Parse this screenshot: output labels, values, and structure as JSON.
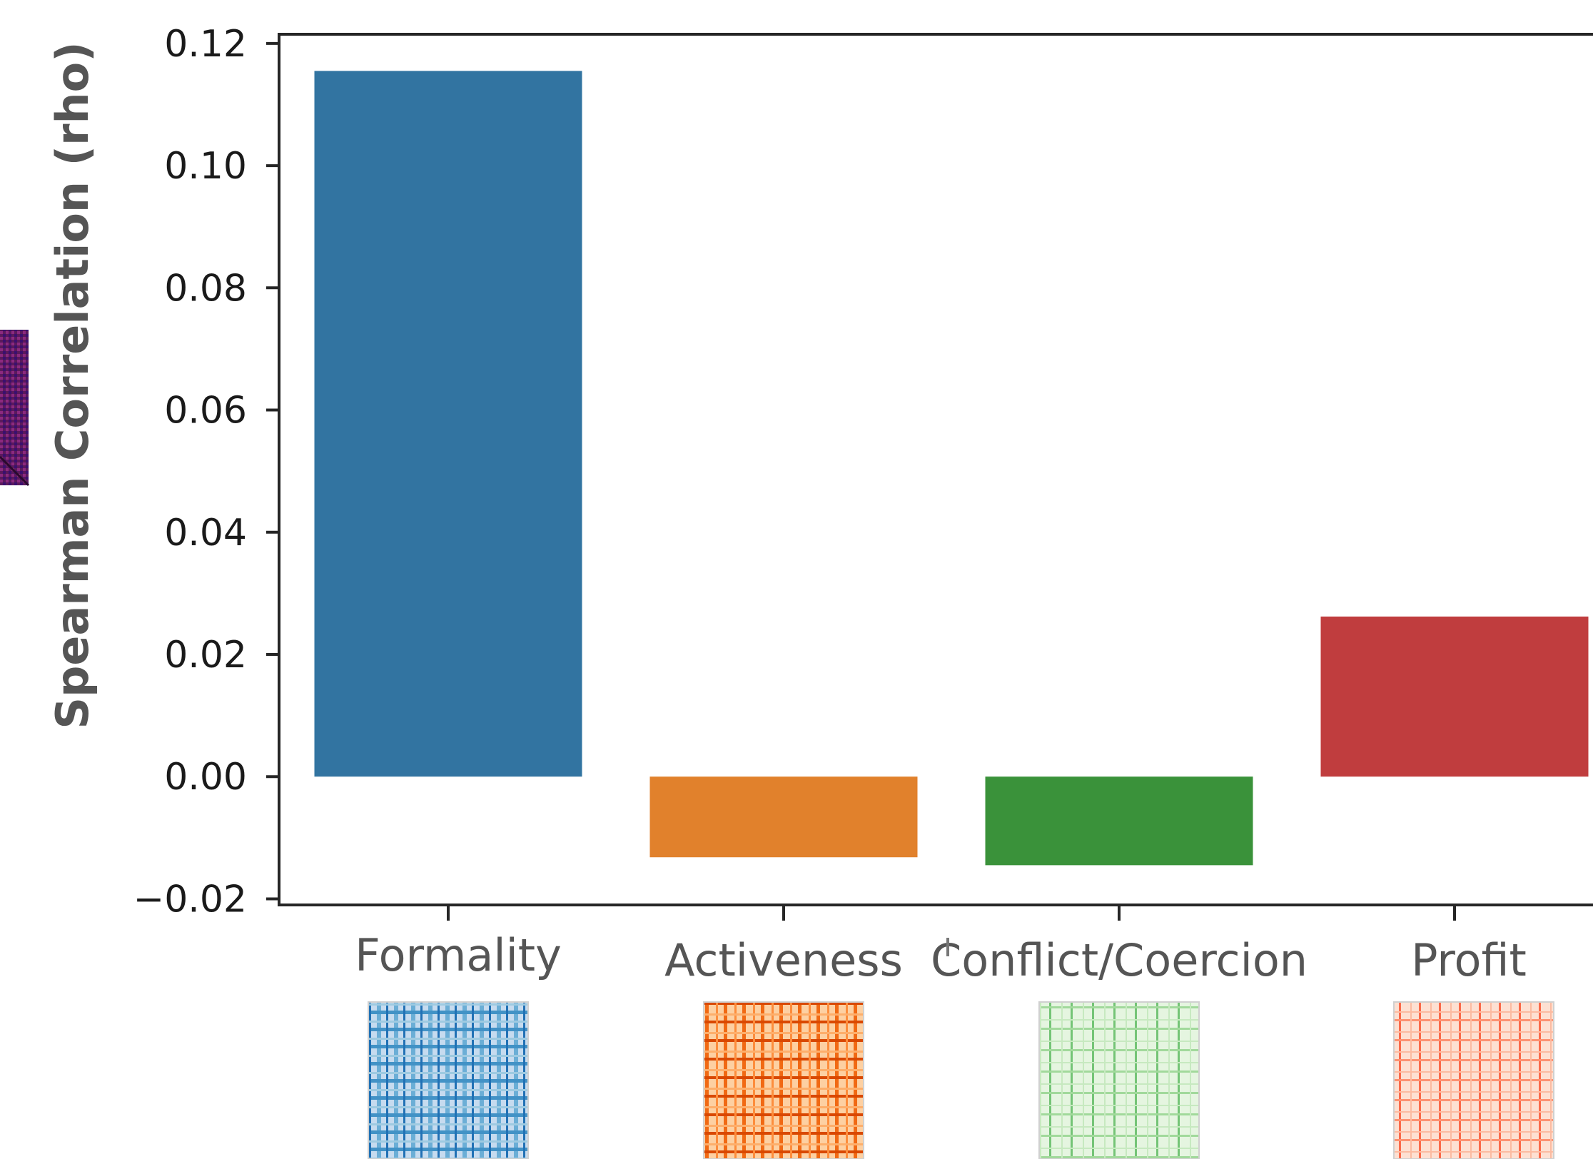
{
  "chart_data": {
    "type": "bar",
    "title": "",
    "xlabel": "",
    "ylabel": "Spearman Correlation (rho)",
    "categories": [
      "Formality",
      "Activeness",
      "Conflict/Coercion",
      "Profit"
    ],
    "values": [
      0.1155,
      -0.0132,
      -0.0145,
      0.0262
    ],
    "colors": [
      "#3274a1",
      "#e1812c",
      "#3a923a",
      "#c03d3e"
    ],
    "ylim": [
      -0.021,
      0.1215
    ],
    "yticks": [
      -0.02,
      0.0,
      0.02,
      0.04,
      0.06,
      0.08,
      0.1,
      0.12
    ],
    "ytick_labels": [
      "−0.02",
      "0.00",
      "0.02",
      "0.04",
      "0.06",
      "0.08",
      "0.10",
      "0.12"
    ],
    "grid": false,
    "legend": "none",
    "thumbnail_colormaps": [
      "blues",
      "oranges",
      "greens",
      "reds"
    ],
    "side_thumbnail_colormap": "magma"
  }
}
